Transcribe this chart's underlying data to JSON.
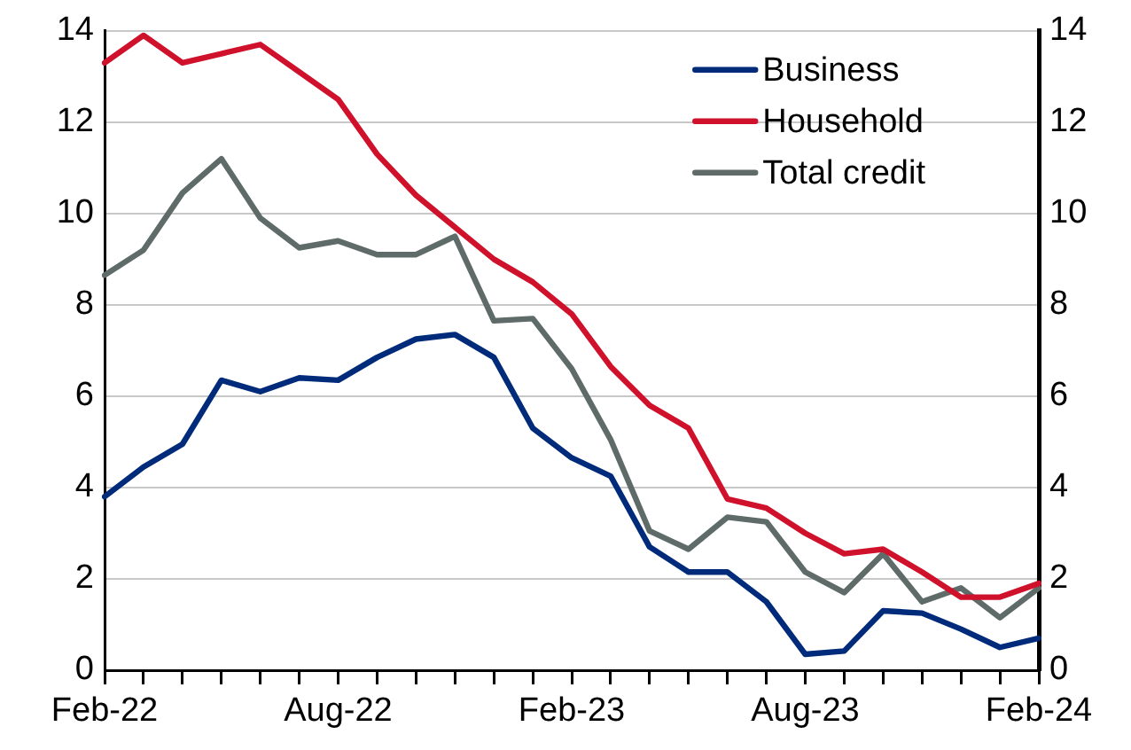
{
  "chart_data": {
    "type": "line",
    "categories": [
      "Feb-22",
      null,
      null,
      null,
      null,
      null,
      "Aug-22",
      null,
      null,
      null,
      null,
      null,
      "Feb-23",
      null,
      null,
      null,
      null,
      null,
      "Aug-23",
      null,
      null,
      null,
      null,
      null,
      "Feb-24"
    ],
    "series": [
      {
        "name": "Business",
        "color": "#002a7a",
        "values": [
          3.8,
          4.45,
          4.95,
          6.35,
          6.1,
          6.4,
          6.35,
          6.85,
          7.25,
          7.35,
          6.85,
          5.3,
          4.65,
          4.25,
          2.7,
          2.15,
          2.15,
          1.5,
          0.35,
          0.42,
          1.3,
          1.25,
          0.9,
          0.5,
          0.7
        ]
      },
      {
        "name": "Household",
        "color": "#d0112b",
        "values": [
          13.3,
          13.9,
          13.3,
          13.5,
          13.7,
          13.1,
          12.5,
          11.3,
          10.4,
          9.7,
          9.0,
          8.5,
          7.8,
          6.65,
          5.8,
          5.3,
          3.75,
          3.55,
          3.0,
          2.55,
          2.65,
          2.15,
          1.6,
          1.6,
          1.9
        ]
      },
      {
        "name": "Total credit",
        "color": "#5f6b69",
        "values": [
          8.65,
          9.2,
          10.45,
          11.2,
          9.9,
          9.25,
          9.4,
          9.1,
          9.1,
          9.5,
          7.65,
          7.7,
          6.6,
          5.05,
          3.05,
          2.65,
          3.35,
          3.25,
          2.15,
          1.7,
          2.55,
          1.5,
          1.8,
          1.15,
          1.8
        ]
      }
    ],
    "ylim": [
      0,
      14
    ],
    "yticks": [
      0,
      2,
      4,
      6,
      8,
      10,
      12,
      14
    ],
    "y2lim": [
      0,
      14
    ],
    "y2ticks": [
      0,
      2,
      4,
      6,
      8,
      10,
      12,
      14
    ],
    "grid": "y",
    "legend": "top right",
    "marker": "none",
    "line_style": "solid"
  }
}
